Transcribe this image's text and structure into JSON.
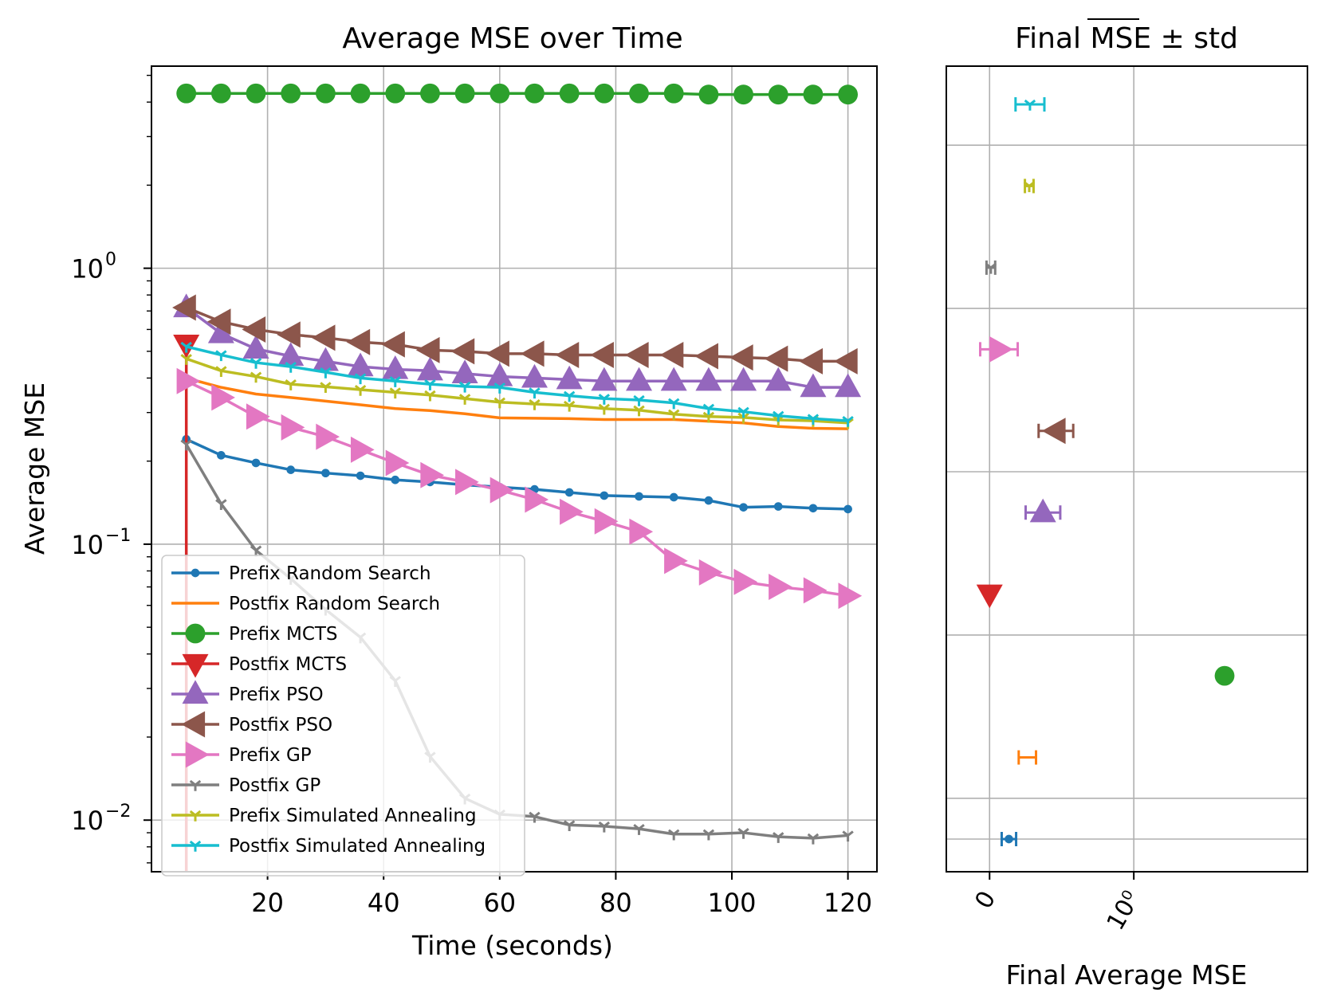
{
  "chart_data": [
    {
      "type": "line",
      "title": "Average MSE over Time",
      "xlabel": "Time (seconds)",
      "ylabel": "Average MSE",
      "xlim": [
        0,
        125
      ],
      "ylim": [
        0.0065,
        5.4
      ],
      "yscale": "log",
      "grid": true,
      "legend_position": "lower-left",
      "xticks": [
        20,
        40,
        60,
        80,
        100,
        120
      ],
      "xtick_labels": [
        "20",
        "40",
        "60",
        "80",
        "100",
        "120"
      ],
      "yticks": [
        {
          "value": 1.0,
          "base": "10",
          "exp": "0"
        },
        {
          "value": 0.1,
          "base": "10",
          "exp": "−1"
        },
        {
          "value": 0.01,
          "base": "10",
          "exp": "−2"
        }
      ],
      "x": [
        6,
        12,
        18,
        24,
        30,
        36,
        42,
        48,
        54,
        60,
        66,
        72,
        78,
        84,
        90,
        96,
        102,
        108,
        114,
        120
      ],
      "series": [
        {
          "name": "Prefix Random Search",
          "color": "#1f77b4",
          "marker": "point",
          "values": [
            0.24,
            0.21,
            0.197,
            0.186,
            0.181,
            0.177,
            0.171,
            0.168,
            0.164,
            0.161,
            0.158,
            0.154,
            0.15,
            0.149,
            0.148,
            0.144,
            0.136,
            0.137,
            0.135,
            0.134
          ]
        },
        {
          "name": "Postfix Random Search",
          "color": "#ff7f0e",
          "marker": "none",
          "values": [
            0.4,
            0.37,
            0.35,
            0.34,
            0.33,
            0.32,
            0.31,
            0.305,
            0.297,
            0.287,
            0.286,
            0.285,
            0.283,
            0.283,
            0.283,
            0.279,
            0.275,
            0.267,
            0.263,
            0.262
          ]
        },
        {
          "name": "Prefix MCTS",
          "color": "#2ca02c",
          "marker": "circle",
          "values": [
            4.3,
            4.3,
            4.3,
            4.3,
            4.3,
            4.3,
            4.3,
            4.3,
            4.3,
            4.3,
            4.3,
            4.3,
            4.3,
            4.3,
            4.3,
            4.26,
            4.26,
            4.26,
            4.26,
            4.26
          ]
        },
        {
          "name": "Postfix MCTS",
          "color": "#d62728",
          "marker": "triangle_down",
          "x": [
            6,
            6
          ],
          "values": [
            0.53,
            0.0065
          ]
        },
        {
          "name": "Prefix PSO",
          "color": "#9467bd",
          "marker": "triangle_up",
          "values": [
            0.72,
            0.58,
            0.51,
            0.48,
            0.46,
            0.44,
            0.43,
            0.425,
            0.415,
            0.405,
            0.4,
            0.395,
            0.39,
            0.39,
            0.39,
            0.39,
            0.39,
            0.39,
            0.37,
            0.37
          ]
        },
        {
          "name": "Postfix PSO",
          "color": "#8c564b",
          "marker": "triangle_left",
          "values": [
            0.72,
            0.64,
            0.6,
            0.575,
            0.56,
            0.54,
            0.53,
            0.505,
            0.5,
            0.49,
            0.49,
            0.485,
            0.485,
            0.485,
            0.485,
            0.48,
            0.475,
            0.47,
            0.46,
            0.46
          ]
        },
        {
          "name": "Prefix GP",
          "color": "#e377c2",
          "marker": "triangle_right",
          "values": [
            0.39,
            0.34,
            0.29,
            0.265,
            0.245,
            0.22,
            0.197,
            0.178,
            0.168,
            0.157,
            0.145,
            0.131,
            0.121,
            0.111,
            0.087,
            0.079,
            0.073,
            0.07,
            0.068,
            0.065
          ]
        },
        {
          "name": "Postfix GP",
          "color": "#7f7f7f",
          "marker": "tick",
          "values": [
            0.23,
            0.14,
            0.095,
            0.075,
            0.058,
            0.046,
            0.032,
            0.017,
            0.012,
            0.0105,
            0.0103,
            0.0096,
            0.0095,
            0.0093,
            0.0089,
            0.0089,
            0.009,
            0.0087,
            0.0086,
            0.0088
          ]
        },
        {
          "name": "Prefix Simulated Annealing",
          "color": "#bcbd22",
          "marker": "tick",
          "values": [
            0.47,
            0.425,
            0.405,
            0.38,
            0.372,
            0.363,
            0.355,
            0.347,
            0.337,
            0.327,
            0.322,
            0.318,
            0.31,
            0.306,
            0.296,
            0.29,
            0.288,
            0.282,
            0.28,
            0.275
          ]
        },
        {
          "name": "Postfix Simulated Annealing",
          "color": "#17becf",
          "marker": "tick",
          "values": [
            0.52,
            0.485,
            0.455,
            0.44,
            0.42,
            0.4,
            0.39,
            0.38,
            0.373,
            0.37,
            0.355,
            0.345,
            0.337,
            0.333,
            0.325,
            0.31,
            0.302,
            0.292,
            0.285,
            0.28
          ]
        }
      ]
    },
    {
      "type": "scatter",
      "title_prefix": "Final ",
      "title_overline": "MSE",
      "title_suffix": " ± std",
      "xlabel": "Final Average MSE",
      "xscale": "symlog",
      "xlim": [
        -0.3,
        16.0
      ],
      "grid": true,
      "xtick_labels": [
        {
          "value": 0,
          "text": "0"
        },
        {
          "value": 1,
          "text": "10⁰"
        }
      ],
      "points": [
        {
          "name": "Prefix Random Search",
          "color": "#1f77b4",
          "marker": "point",
          "mean": 0.134,
          "std": 0.05
        },
        {
          "name": "Postfix Random Search",
          "color": "#ff7f0e",
          "marker": "none",
          "mean": 0.262,
          "std": 0.06
        },
        {
          "name": "Prefix MCTS",
          "color": "#2ca02c",
          "marker": "circle",
          "mean": 4.26,
          "std": 0
        },
        {
          "name": "Postfix MCTS",
          "color": "#d62728",
          "marker": "triangle_down",
          "mean": 0.0,
          "std": 0
        },
        {
          "name": "Prefix PSO",
          "color": "#9467bd",
          "marker": "triangle_up",
          "mean": 0.37,
          "std": 0.12
        },
        {
          "name": "Postfix PSO",
          "color": "#8c564b",
          "marker": "triangle_left",
          "mean": 0.46,
          "std": 0.12
        },
        {
          "name": "Prefix GP",
          "color": "#e377c2",
          "marker": "triangle_right",
          "mean": 0.065,
          "std": 0.13
        },
        {
          "name": "Postfix GP",
          "color": "#7f7f7f",
          "marker": "tick",
          "mean": 0.0088,
          "std": 0.03
        },
        {
          "name": "Prefix Simulated Annealing",
          "color": "#bcbd22",
          "marker": "tick",
          "mean": 0.275,
          "std": 0.03
        },
        {
          "name": "Postfix Simulated Annealing",
          "color": "#17becf",
          "marker": "tick",
          "mean": 0.28,
          "std": 0.1
        }
      ]
    }
  ]
}
